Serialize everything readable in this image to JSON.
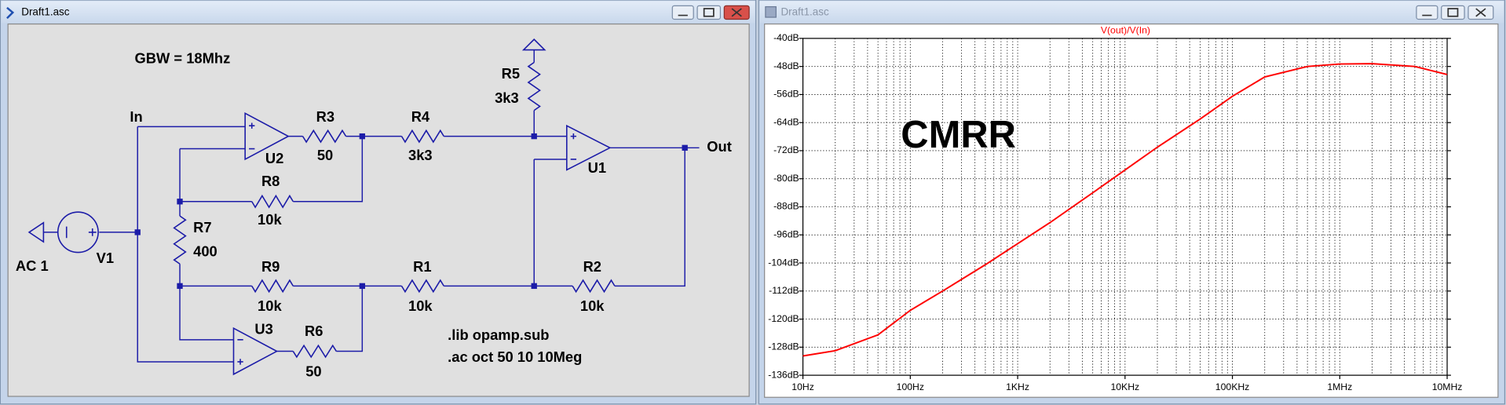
{
  "schematic_window": {
    "title": "Draft1.asc",
    "labels": [
      "GBW = 18Mhz",
      "In",
      "Out",
      "R5",
      "3k3",
      "R3",
      "50",
      "R4",
      "3k3",
      "U2",
      "U1",
      "R8",
      "10k",
      "R7",
      "400",
      "V1",
      "AC 1",
      "R9",
      "10k",
      "R1",
      "10k",
      "R2",
      "10k",
      "U3",
      "R6",
      "50",
      ".lib opamp.sub",
      ".ac oct 50 10 10Meg"
    ]
  },
  "plot_window": {
    "title": "Draft1.asc"
  },
  "chart_data": {
    "type": "line",
    "title": "V(out)/V(In)",
    "annotation": "CMRR",
    "x": [
      10,
      20,
      50,
      100,
      200,
      500,
      1000,
      2000,
      5000,
      10000,
      20000,
      50000,
      100000,
      200000,
      500000,
      1000000,
      2000000,
      5000000,
      10000000
    ],
    "values": [
      -130.5,
      -129,
      -124.5,
      -117.5,
      -112,
      -104.5,
      -98.5,
      -92.5,
      -84,
      -77.5,
      -71,
      -63,
      -56.5,
      -51,
      -48,
      -47.3,
      -47.2,
      -48,
      -50.3
    ],
    "color": "#ff0000",
    "log_x": true,
    "grid": true,
    "xlim": [
      10,
      10000000
    ],
    "xticks": [
      {
        "value": 10,
        "label": "10Hz"
      },
      {
        "value": 100,
        "label": "100Hz"
      },
      {
        "value": 1000,
        "label": "1KHz"
      },
      {
        "value": 10000,
        "label": "10KHz"
      },
      {
        "value": 100000,
        "label": "100KHz"
      },
      {
        "value": 1000000,
        "label": "1MHz"
      },
      {
        "value": 10000000,
        "label": "10MHz"
      }
    ],
    "ylim": [
      -136,
      -40
    ],
    "yticks": [
      {
        "value": -40,
        "label": "-40dB"
      },
      {
        "value": -48,
        "label": "-48dB"
      },
      {
        "value": -56,
        "label": "-56dB"
      },
      {
        "value": -64,
        "label": "-64dB"
      },
      {
        "value": -72,
        "label": "-72dB"
      },
      {
        "value": -80,
        "label": "-80dB"
      },
      {
        "value": -88,
        "label": "-88dB"
      },
      {
        "value": -96,
        "label": "-96dB"
      },
      {
        "value": -104,
        "label": "-104dB"
      },
      {
        "value": -112,
        "label": "-112dB"
      },
      {
        "value": -120,
        "label": "-120dB"
      },
      {
        "value": -128,
        "label": "-128dB"
      },
      {
        "value": -136,
        "label": "-136dB"
      }
    ]
  }
}
